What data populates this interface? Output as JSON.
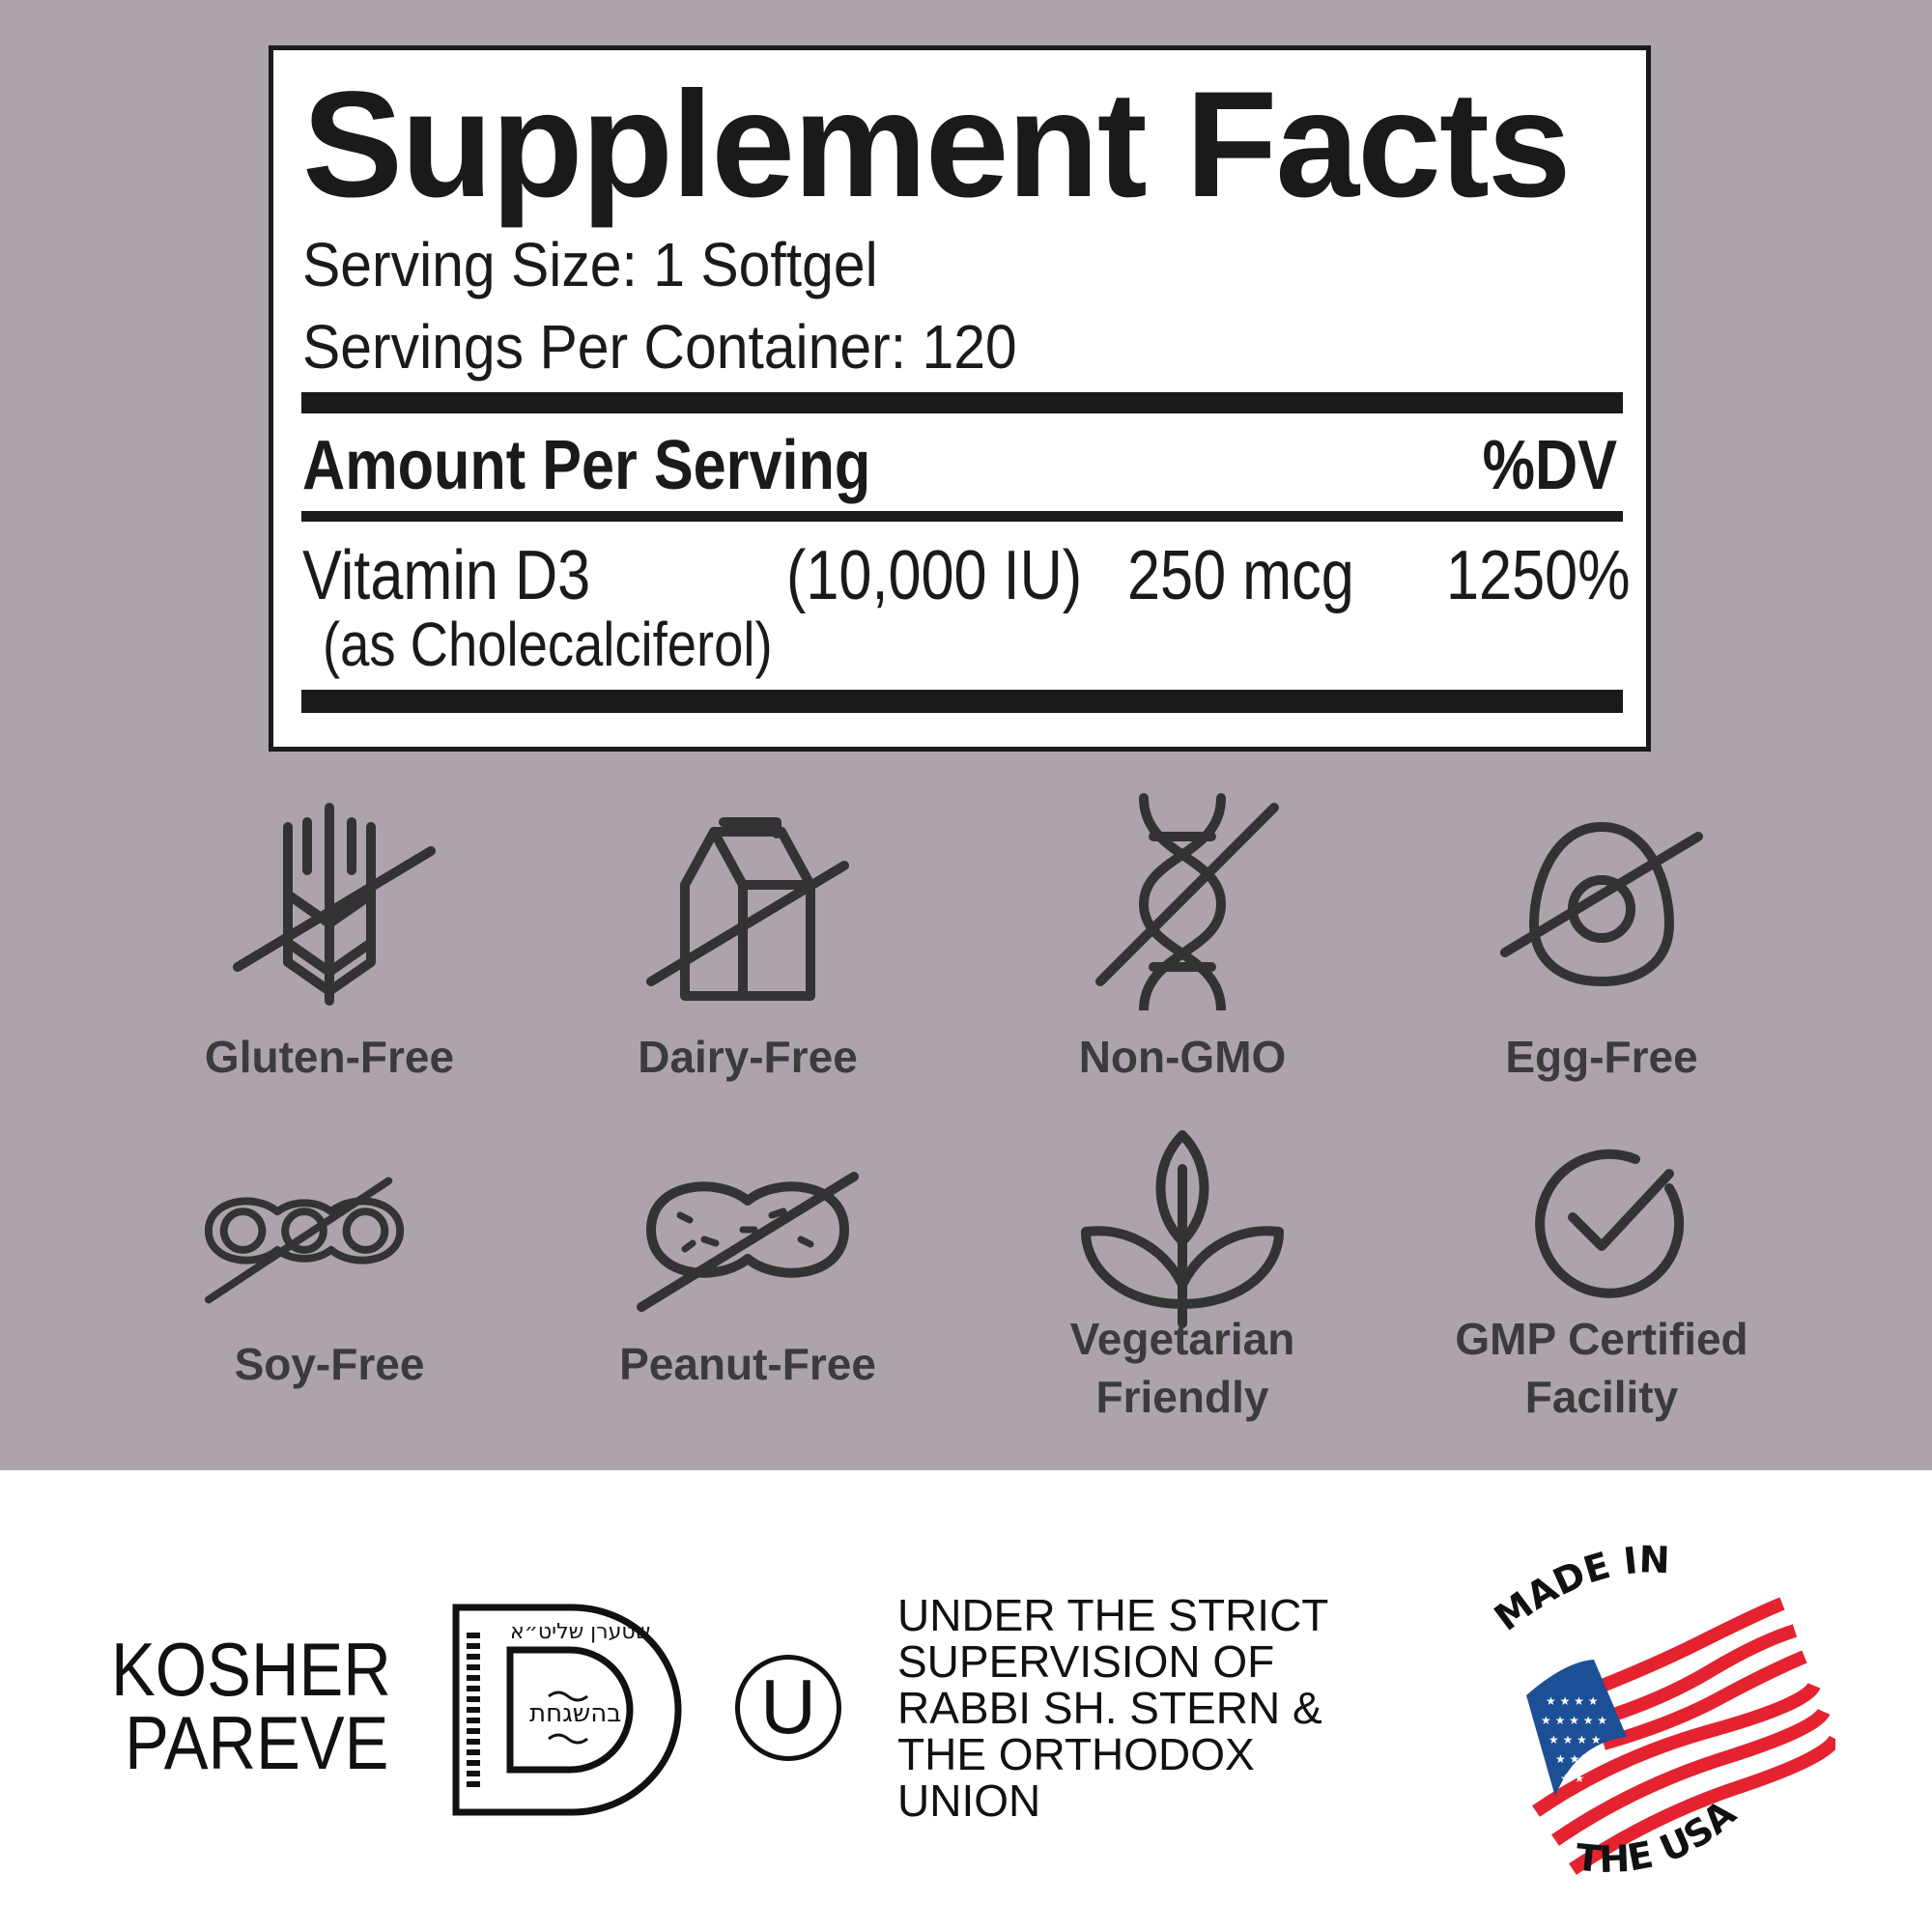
{
  "facts": {
    "title": "Supplement Facts",
    "serving_size": "Serving Size: 1 Softgel",
    "servings_per_container": "Servings Per Container: 120",
    "amount_header": "Amount Per Serving",
    "dv_header": "%DV",
    "rows": [
      {
        "name": "Vitamin D3",
        "sub": "(as Cholecalciferol)",
        "iu": "(10,000 IU)",
        "amount": "250 mcg",
        "dv": "1250%"
      }
    ]
  },
  "badges": [
    {
      "label": "Gluten-Free",
      "icon": "wheat-crossed-icon"
    },
    {
      "label": "Dairy-Free",
      "icon": "milk-carton-crossed-icon"
    },
    {
      "label": "Non-GMO",
      "icon": "dna-crossed-icon"
    },
    {
      "label": "Egg-Free",
      "icon": "egg-crossed-icon"
    },
    {
      "label": "Soy-Free",
      "icon": "soybean-crossed-icon"
    },
    {
      "label": "Peanut-Free",
      "icon": "peanut-crossed-icon"
    },
    {
      "label_line1": "Vegetarian",
      "label_line2": "Friendly",
      "icon": "leaf-plant-icon"
    },
    {
      "label_line1": "GMP Certified",
      "label_line2": "Facility",
      "icon": "check-circle-icon"
    }
  ],
  "kosher": {
    "line1": "KOSHER",
    "line2": "PAREVE",
    "ou": "U",
    "supervision": [
      "UNDER THE STRICT",
      "SUPERVISION OF",
      "RABBI SH. STERN &",
      "THE ORTHODOX",
      "UNION"
    ],
    "seal_center": "בהשגחת",
    "seal_top": "שטערן שליט״א"
  },
  "usa": {
    "top": "MADE IN",
    "bottom": "THE USA",
    "colors": {
      "red": "#e5222f",
      "blue": "#1c4f96"
    }
  },
  "colors": {
    "background": "#ada3ad",
    "icon": "#333333"
  }
}
